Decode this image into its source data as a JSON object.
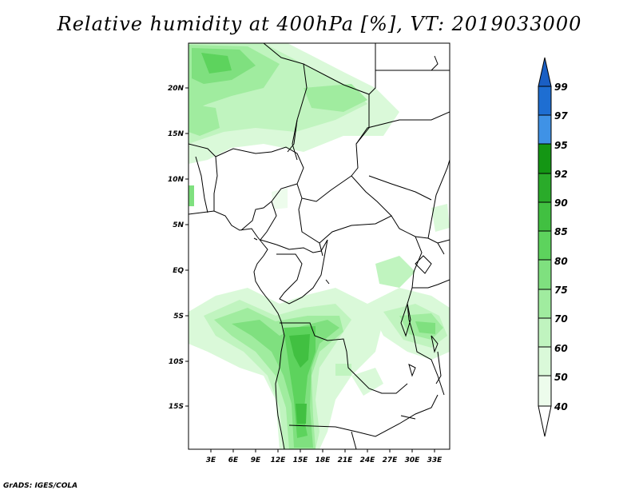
{
  "title": "Relative humidity at 400hPa [%], VT: 2019033000",
  "credit": "GrADS: IGES/COLA",
  "map": {
    "lat_labels": [
      "20N",
      "15N",
      "10N",
      "5N",
      "EQ",
      "5S",
      "10S",
      "15S"
    ],
    "lon_labels": [
      "3E",
      "6E",
      "9E",
      "12E",
      "15E",
      "18E",
      "21E",
      "24E",
      "27E",
      "30E",
      "33E"
    ]
  },
  "colorbar": {
    "levels": [
      "99",
      "97",
      "95",
      "92",
      "90",
      "85",
      "80",
      "75",
      "70",
      "60",
      "50",
      "40"
    ],
    "colors": {
      "over": "#1a5fc4",
      "99": "#1e6ed2",
      "97": "#3f92e6",
      "95": "#149614",
      "92": "#2aab2a",
      "90": "#41c041",
      "85": "#5dd35d",
      "80": "#7fe07f",
      "75": "#a0ec9f",
      "70": "#c0f4bf",
      "60": "#daf9d9",
      "50": "#edfcec",
      "40": "#ffffff"
    }
  }
}
